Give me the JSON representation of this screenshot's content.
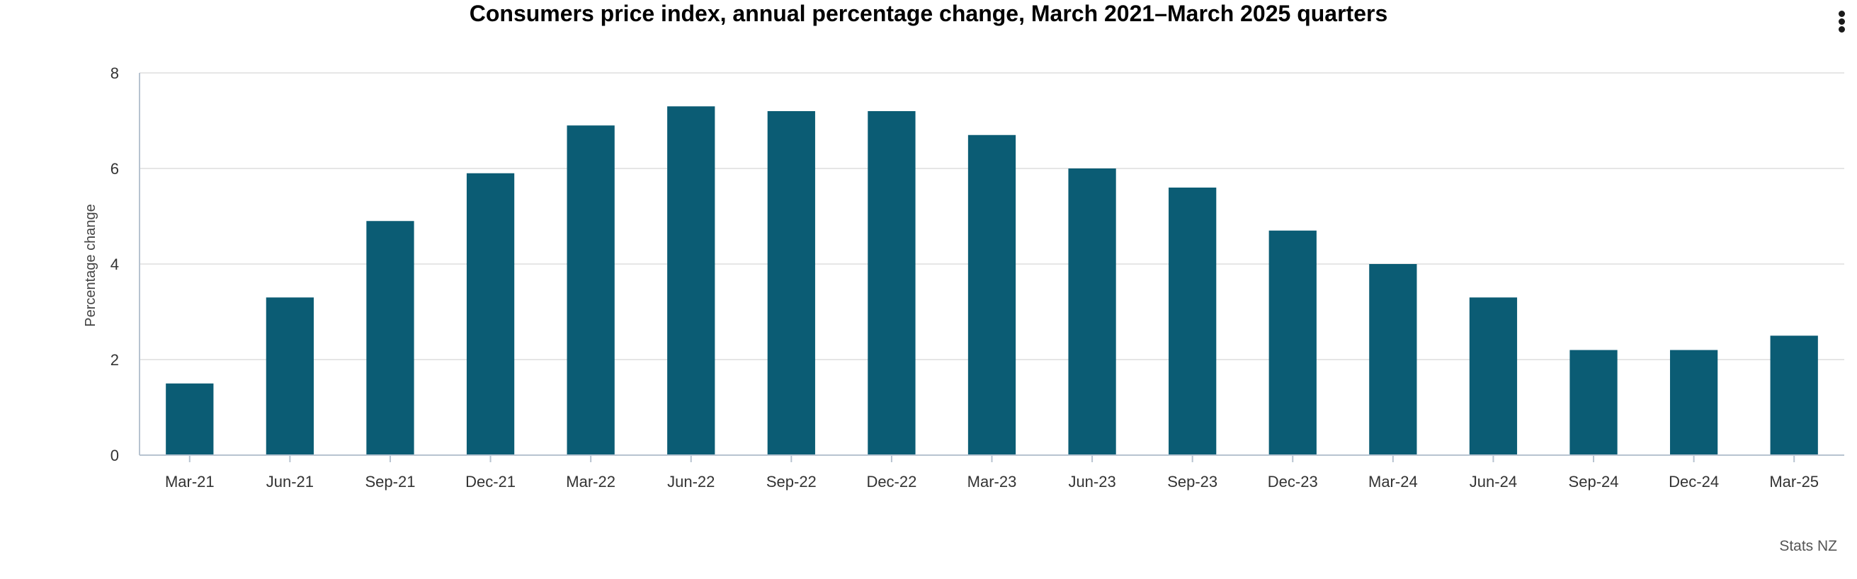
{
  "colors": {
    "bar": "#0b5c74",
    "grid": "#dedede",
    "axis": "#b7c3d0",
    "text": "#333333"
  },
  "menu": {
    "icon": "more-vertical-icon"
  },
  "chart_data": {
    "type": "bar",
    "title": "Consumers price index, annual percentage change, March 2021–March 2025 quarters",
    "xlabel": "",
    "ylabel": "Percentage change",
    "ylim": [
      0,
      8
    ],
    "yticks": [
      0,
      2,
      4,
      6,
      8
    ],
    "grid": true,
    "legend": "none",
    "categories": [
      "Mar-21",
      "Jun-21",
      "Sep-21",
      "Dec-21",
      "Mar-22",
      "Jun-22",
      "Sep-22",
      "Dec-22",
      "Mar-23",
      "Jun-23",
      "Sep-23",
      "Dec-23",
      "Mar-24",
      "Jun-24",
      "Sep-24",
      "Dec-24",
      "Mar-25"
    ],
    "series": [
      {
        "name": "Annual percentage change",
        "values": [
          1.5,
          3.3,
          4.9,
          5.9,
          6.9,
          7.3,
          7.2,
          7.2,
          6.7,
          6.0,
          5.6,
          4.7,
          4.0,
          3.3,
          2.2,
          2.2,
          2.5
        ]
      }
    ],
    "credit": "Stats NZ"
  }
}
